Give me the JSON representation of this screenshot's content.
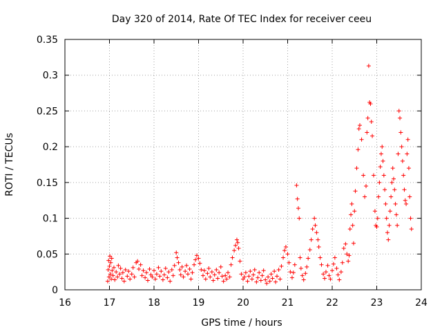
{
  "chart_data": {
    "type": "scatter",
    "title": "Day 320 of 2014, Rate Of TEC Index for receiver ceeu",
    "xlabel": "GPS time / hours",
    "ylabel": "ROTI / TECUs",
    "xlim": [
      16,
      24
    ],
    "ylim": [
      0,
      0.35
    ],
    "x_ticks": [
      16,
      17,
      18,
      19,
      20,
      21,
      22,
      23,
      24
    ],
    "y_ticks": [
      0,
      0.05,
      0.1,
      0.15,
      0.2,
      0.25,
      0.3,
      0.35
    ],
    "x_tick_labels": [
      "16",
      "17",
      "18",
      "19",
      "20",
      "21",
      "22",
      "23",
      "24"
    ],
    "y_tick_labels": [
      "0",
      "0.05",
      "0.1",
      "0.15",
      "0.2",
      "0.25",
      "0.3",
      "0.35"
    ],
    "grid": true,
    "marker": "+",
    "color": "#ff0000",
    "series": [
      {
        "name": "ROTI",
        "points": [
          [
            16.96,
            0.012
          ],
          [
            16.97,
            0.028
          ],
          [
            16.98,
            0.041
          ],
          [
            16.99,
            0.018
          ],
          [
            17.0,
            0.033
          ],
          [
            17.01,
            0.047
          ],
          [
            17.02,
            0.022
          ],
          [
            17.03,
            0.038
          ],
          [
            17.04,
            0.015
          ],
          [
            17.05,
            0.044
          ],
          [
            17.06,
            0.027
          ],
          [
            17.08,
            0.02
          ],
          [
            17.1,
            0.031
          ],
          [
            17.12,
            0.014
          ],
          [
            17.15,
            0.025
          ],
          [
            17.18,
            0.018
          ],
          [
            17.2,
            0.034
          ],
          [
            17.23,
            0.022
          ],
          [
            17.25,
            0.03
          ],
          [
            17.28,
            0.016
          ],
          [
            17.3,
            0.024
          ],
          [
            17.33,
            0.012
          ],
          [
            17.36,
            0.028
          ],
          [
            17.4,
            0.019
          ],
          [
            17.43,
            0.026
          ],
          [
            17.46,
            0.015
          ],
          [
            17.5,
            0.022
          ],
          [
            17.53,
            0.031
          ],
          [
            17.56,
            0.018
          ],
          [
            17.6,
            0.038
          ],
          [
            17.63,
            0.04
          ],
          [
            17.66,
            0.029
          ],
          [
            17.7,
            0.035
          ],
          [
            17.73,
            0.02
          ],
          [
            17.76,
            0.027
          ],
          [
            17.8,
            0.017
          ],
          [
            17.83,
            0.024
          ],
          [
            17.86,
            0.013
          ],
          [
            17.9,
            0.029
          ],
          [
            17.93,
            0.021
          ],
          [
            17.96,
            0.018
          ],
          [
            18.0,
            0.027
          ],
          [
            18.03,
            0.015
          ],
          [
            18.06,
            0.022
          ],
          [
            18.1,
            0.031
          ],
          [
            18.13,
            0.019
          ],
          [
            18.16,
            0.026
          ],
          [
            18.2,
            0.014
          ],
          [
            18.23,
            0.021
          ],
          [
            18.26,
            0.03
          ],
          [
            18.3,
            0.017
          ],
          [
            18.33,
            0.025
          ],
          [
            18.36,
            0.012
          ],
          [
            18.4,
            0.028
          ],
          [
            18.43,
            0.02
          ],
          [
            18.46,
            0.034
          ],
          [
            18.5,
            0.052
          ],
          [
            18.52,
            0.045
          ],
          [
            18.55,
            0.038
          ],
          [
            18.58,
            0.028
          ],
          [
            18.6,
            0.021
          ],
          [
            18.63,
            0.032
          ],
          [
            18.66,
            0.018
          ],
          [
            18.7,
            0.026
          ],
          [
            18.73,
            0.034
          ],
          [
            18.76,
            0.022
          ],
          [
            18.8,
            0.029
          ],
          [
            18.83,
            0.015
          ],
          [
            18.86,
            0.024
          ],
          [
            18.9,
            0.035
          ],
          [
            18.93,
            0.042
          ],
          [
            18.96,
            0.048
          ],
          [
            19.0,
            0.044
          ],
          [
            19.03,
            0.037
          ],
          [
            19.06,
            0.028
          ],
          [
            19.1,
            0.02
          ],
          [
            19.13,
            0.027
          ],
          [
            19.16,
            0.015
          ],
          [
            19.2,
            0.023
          ],
          [
            19.23,
            0.03
          ],
          [
            19.26,
            0.018
          ],
          [
            19.3,
            0.025
          ],
          [
            19.33,
            0.013
          ],
          [
            19.36,
            0.021
          ],
          [
            19.4,
            0.028
          ],
          [
            19.43,
            0.016
          ],
          [
            19.46,
            0.024
          ],
          [
            19.5,
            0.032
          ],
          [
            19.53,
            0.019
          ],
          [
            19.56,
            0.012
          ],
          [
            19.6,
            0.02
          ],
          [
            19.63,
            0.015
          ],
          [
            19.66,
            0.024
          ],
          [
            19.7,
            0.018
          ],
          [
            19.73,
            0.035
          ],
          [
            19.76,
            0.045
          ],
          [
            19.8,
            0.055
          ],
          [
            19.83,
            0.062
          ],
          [
            19.86,
            0.07
          ],
          [
            19.88,
            0.066
          ],
          [
            19.9,
            0.058
          ],
          [
            19.93,
            0.04
          ],
          [
            19.96,
            0.022
          ],
          [
            20.0,
            0.015
          ],
          [
            20.03,
            0.018
          ],
          [
            20.06,
            0.024
          ],
          [
            20.1,
            0.012
          ],
          [
            20.13,
            0.019
          ],
          [
            20.16,
            0.026
          ],
          [
            20.2,
            0.015
          ],
          [
            20.23,
            0.021
          ],
          [
            20.26,
            0.028
          ],
          [
            20.3,
            0.011
          ],
          [
            20.33,
            0.017
          ],
          [
            20.36,
            0.024
          ],
          [
            20.4,
            0.013
          ],
          [
            20.43,
            0.02
          ],
          [
            20.46,
            0.027
          ],
          [
            20.5,
            0.014
          ],
          [
            20.53,
            0.009
          ],
          [
            20.56,
            0.018
          ],
          [
            20.6,
            0.012
          ],
          [
            20.63,
            0.022
          ],
          [
            20.66,
            0.016
          ],
          [
            20.7,
            0.026
          ],
          [
            20.73,
            0.011
          ],
          [
            20.76,
            0.019
          ],
          [
            20.8,
            0.028
          ],
          [
            20.83,
            0.015
          ],
          [
            20.86,
            0.033
          ],
          [
            20.9,
            0.045
          ],
          [
            20.93,
            0.055
          ],
          [
            20.96,
            0.06
          ],
          [
            21.0,
            0.05
          ],
          [
            21.03,
            0.038
          ],
          [
            21.06,
            0.025
          ],
          [
            21.1,
            0.017
          ],
          [
            21.13,
            0.024
          ],
          [
            21.16,
            0.035
          ],
          [
            21.2,
            0.146
          ],
          [
            21.22,
            0.127
          ],
          [
            21.24,
            0.114
          ],
          [
            21.26,
            0.1
          ],
          [
            21.28,
            0.045
          ],
          [
            21.3,
            0.03
          ],
          [
            21.33,
            0.02
          ],
          [
            21.36,
            0.014
          ],
          [
            21.4,
            0.023
          ],
          [
            21.43,
            0.032
          ],
          [
            21.46,
            0.044
          ],
          [
            21.5,
            0.056
          ],
          [
            21.53,
            0.07
          ],
          [
            21.56,
            0.085
          ],
          [
            21.6,
            0.1
          ],
          [
            21.62,
            0.09
          ],
          [
            21.65,
            0.08
          ],
          [
            21.68,
            0.07
          ],
          [
            21.7,
            0.06
          ],
          [
            21.73,
            0.045
          ],
          [
            21.76,
            0.035
          ],
          [
            21.8,
            0.022
          ],
          [
            21.83,
            0.016
          ],
          [
            21.86,
            0.025
          ],
          [
            21.9,
            0.034
          ],
          [
            21.93,
            0.02
          ],
          [
            21.96,
            0.015
          ],
          [
            22.0,
            0.027
          ],
          [
            22.03,
            0.036
          ],
          [
            22.06,
            0.045
          ],
          [
            22.1,
            0.03
          ],
          [
            22.13,
            0.021
          ],
          [
            22.16,
            0.014
          ],
          [
            22.2,
            0.025
          ],
          [
            22.23,
            0.038
          ],
          [
            22.26,
            0.058
          ],
          [
            22.3,
            0.064
          ],
          [
            22.33,
            0.05
          ],
          [
            22.36,
            0.04
          ],
          [
            22.38,
            0.048
          ],
          [
            22.4,
            0.085
          ],
          [
            22.42,
            0.105
          ],
          [
            22.44,
            0.12
          ],
          [
            22.46,
            0.09
          ],
          [
            22.48,
            0.065
          ],
          [
            22.5,
            0.11
          ],
          [
            22.52,
            0.138
          ],
          [
            22.55,
            0.17
          ],
          [
            22.58,
            0.196
          ],
          [
            22.6,
            0.225
          ],
          [
            22.62,
            0.23
          ],
          [
            22.66,
            0.21
          ],
          [
            22.7,
            0.16
          ],
          [
            22.73,
            0.13
          ],
          [
            22.76,
            0.145
          ],
          [
            22.78,
            0.22
          ],
          [
            22.8,
            0.24
          ],
          [
            22.82,
            0.313
          ],
          [
            22.84,
            0.262
          ],
          [
            22.86,
            0.26
          ],
          [
            22.88,
            0.235
          ],
          [
            22.9,
            0.215
          ],
          [
            22.93,
            0.16
          ],
          [
            22.96,
            0.11
          ],
          [
            22.98,
            0.09
          ],
          [
            23.0,
            0.088
          ],
          [
            23.02,
            0.1
          ],
          [
            23.04,
            0.13
          ],
          [
            23.06,
            0.15
          ],
          [
            23.08,
            0.172
          ],
          [
            23.1,
            0.19
          ],
          [
            23.12,
            0.2
          ],
          [
            23.14,
            0.18
          ],
          [
            23.16,
            0.16
          ],
          [
            23.18,
            0.14
          ],
          [
            23.2,
            0.12
          ],
          [
            23.22,
            0.1
          ],
          [
            23.24,
            0.08
          ],
          [
            23.26,
            0.07
          ],
          [
            23.28,
            0.09
          ],
          [
            23.3,
            0.11
          ],
          [
            23.32,
            0.13
          ],
          [
            23.34,
            0.15
          ],
          [
            23.36,
            0.17
          ],
          [
            23.38,
            0.155
          ],
          [
            23.4,
            0.14
          ],
          [
            23.42,
            0.12
          ],
          [
            23.44,
            0.105
          ],
          [
            23.46,
            0.09
          ],
          [
            23.48,
            0.19
          ],
          [
            23.5,
            0.25
          ],
          [
            23.52,
            0.24
          ],
          [
            23.54,
            0.22
          ],
          [
            23.56,
            0.2
          ],
          [
            23.58,
            0.18
          ],
          [
            23.6,
            0.16
          ],
          [
            23.62,
            0.14
          ],
          [
            23.64,
            0.125
          ],
          [
            23.66,
            0.12
          ],
          [
            23.68,
            0.19
          ],
          [
            23.7,
            0.21
          ],
          [
            23.72,
            0.17
          ],
          [
            23.74,
            0.13
          ],
          [
            23.76,
            0.1
          ],
          [
            23.78,
            0.085
          ]
        ]
      }
    ]
  }
}
